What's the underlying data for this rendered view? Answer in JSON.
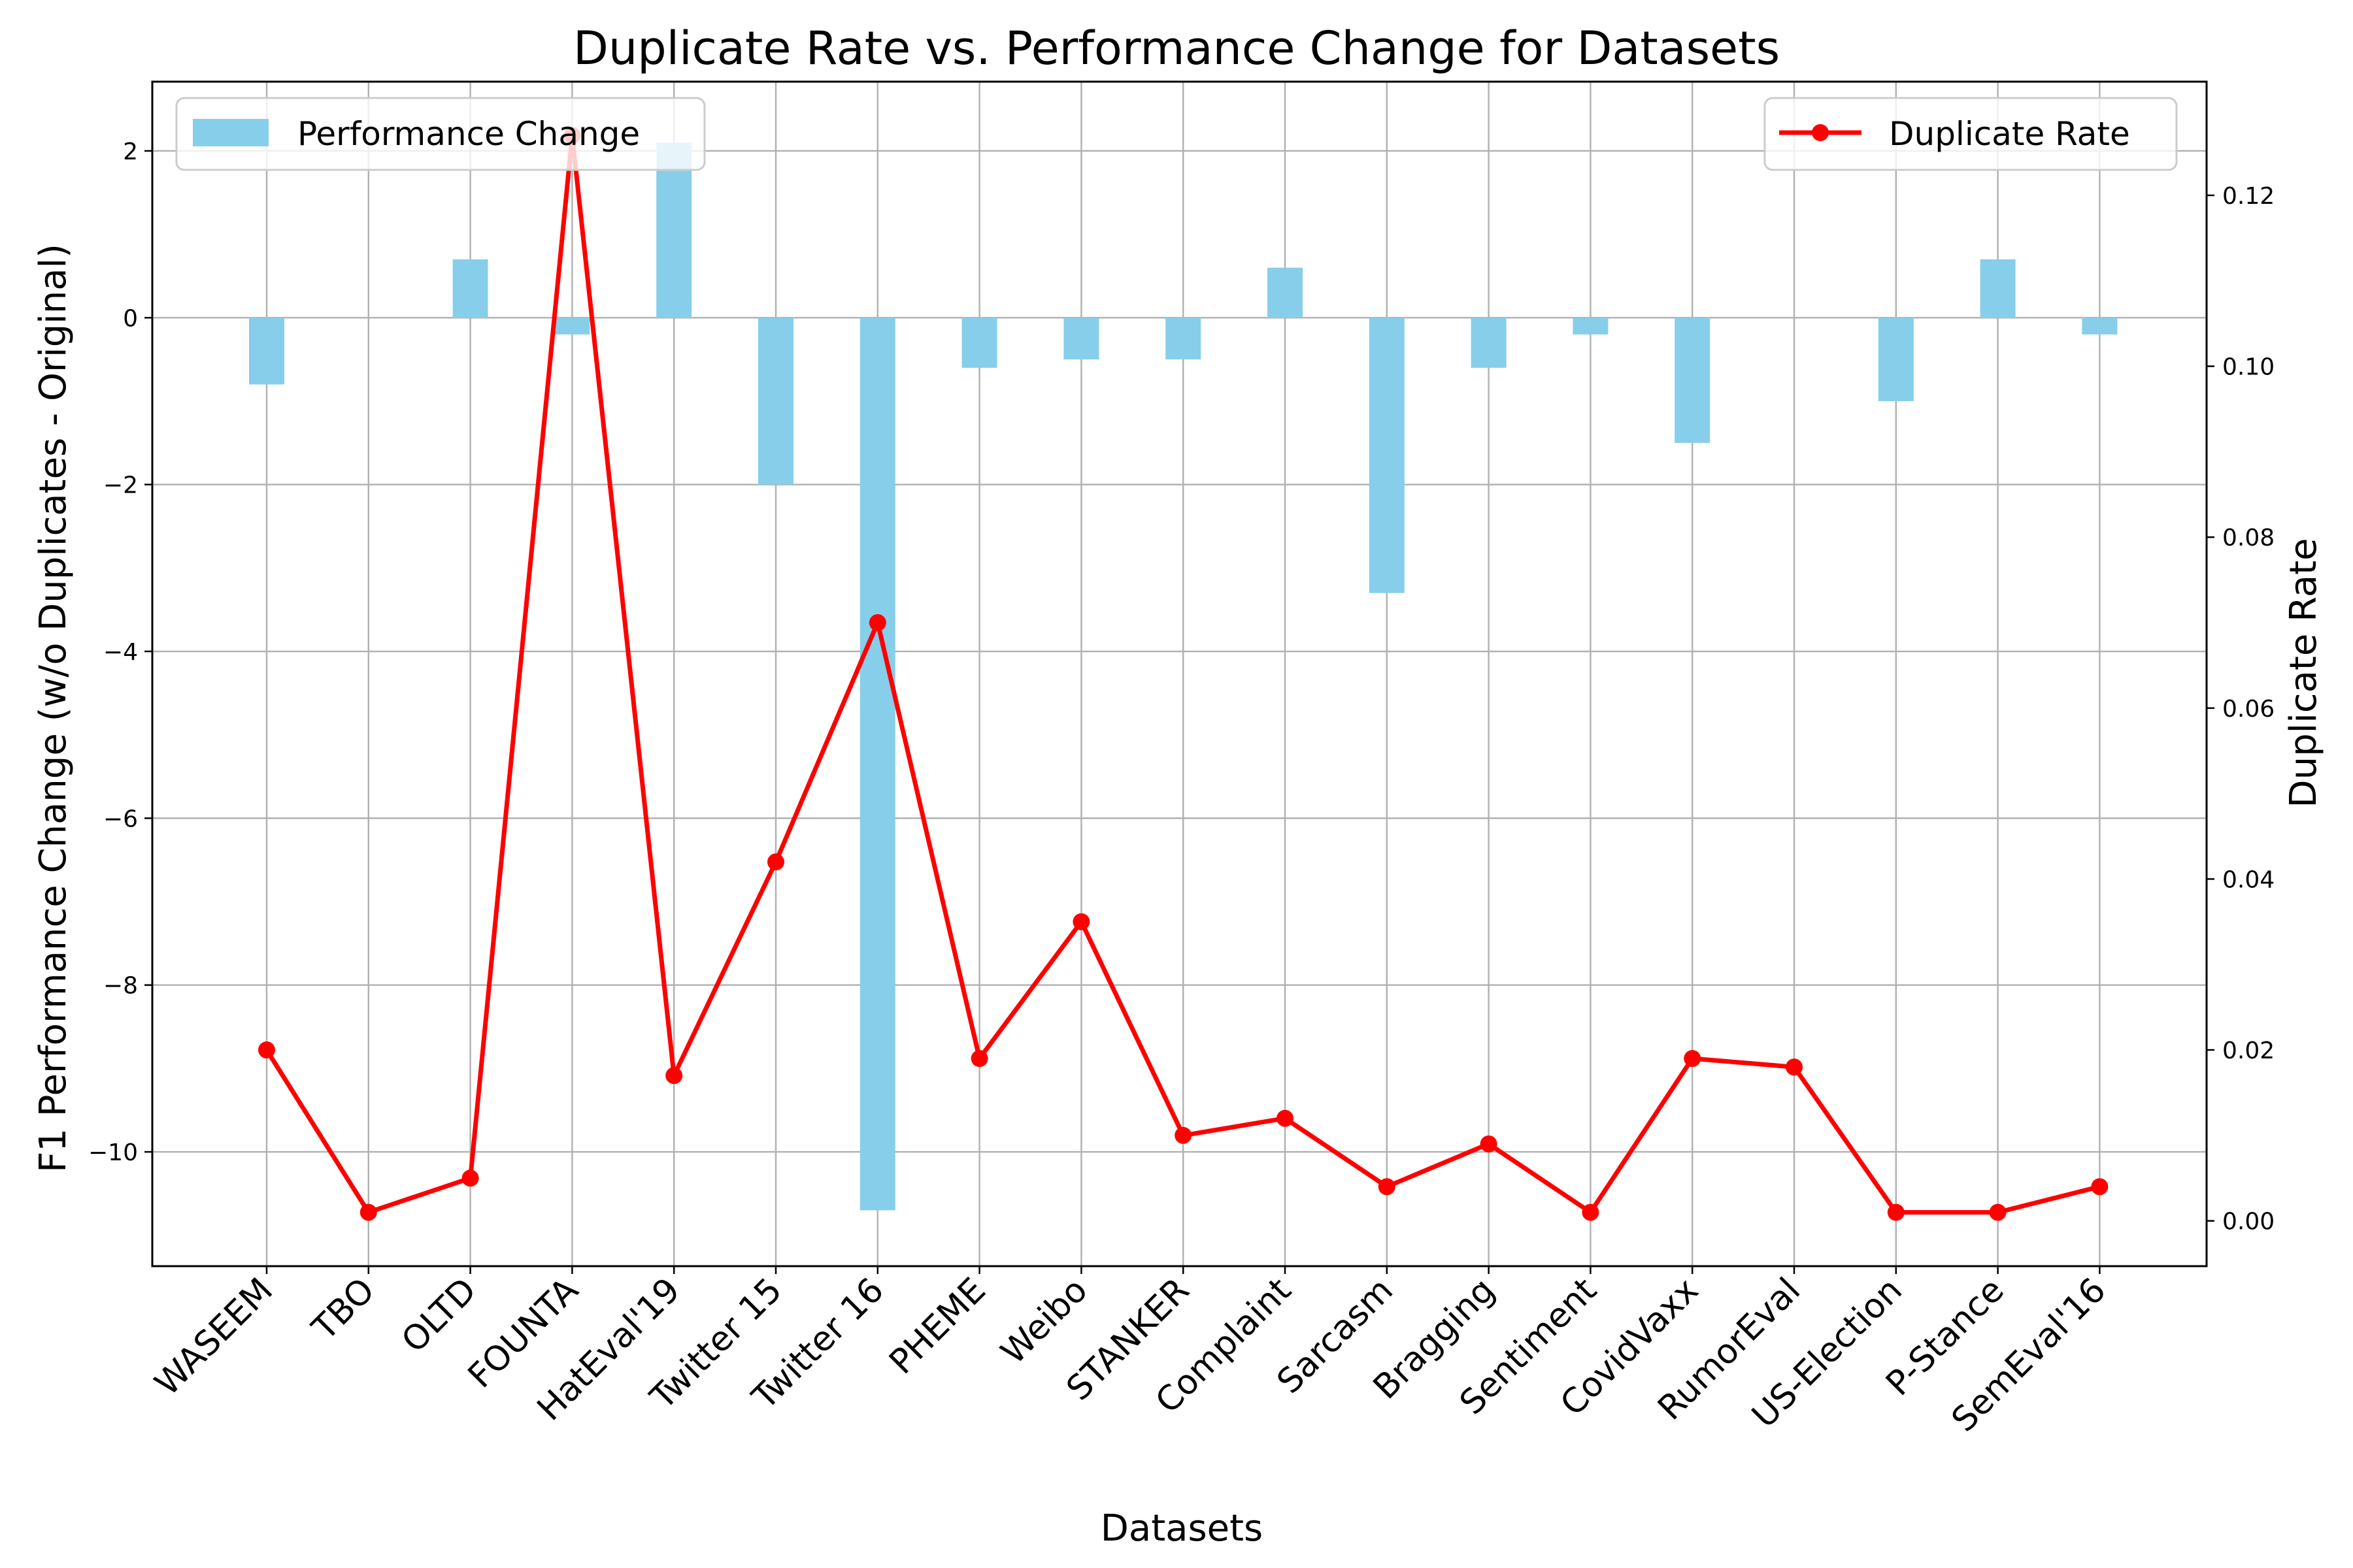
{
  "chart_data": {
    "type": "bar+line",
    "title": "Duplicate Rate vs. Performance Change for Datasets",
    "xlabel": "Datasets",
    "ylabel_left": "F1 Performance Change (w/o Duplicates - Original)",
    "ylabel_right": "Duplicate Rate",
    "categories": [
      "WASEEM",
      "TBO",
      "OLTD",
      "FOUNTA",
      "HatEval'19",
      "Twitter 15",
      "Twitter 16",
      "PHEME",
      "Weibo",
      "STANKER",
      "Complaint",
      "Sarcasm",
      "Bragging",
      "Sentiment",
      "CovidVaxx",
      "RumorEval",
      "US-Election",
      "P-Stance",
      "SemEval'16"
    ],
    "series": [
      {
        "name": "Performance Change",
        "type": "bar",
        "axis": "left",
        "color": "#87ceeb",
        "values": [
          -0.8,
          0.0,
          0.7,
          -0.2,
          2.1,
          -2.0,
          -10.7,
          -0.6,
          -0.5,
          -0.5,
          0.6,
          -3.3,
          -0.6,
          -0.2,
          -1.5,
          0.0,
          -1.0,
          0.7,
          -0.2
        ]
      },
      {
        "name": "Duplicate Rate",
        "type": "line",
        "axis": "right",
        "color": "#ff0000",
        "values": [
          0.02,
          0.001,
          0.005,
          0.127,
          0.017,
          0.042,
          0.07,
          0.019,
          0.035,
          0.01,
          0.012,
          0.004,
          0.009,
          0.001,
          0.019,
          0.018,
          0.001,
          0.001,
          0.004
        ]
      }
    ],
    "ylim_left": [
      -11.37,
      2.83
    ],
    "ylim_right": [
      -0.0053,
      0.1333
    ],
    "yticks_left": [
      2,
      0,
      -2,
      -4,
      -6,
      -8,
      -10
    ],
    "yticks_left_labels": [
      "2",
      "0",
      "−2",
      "−4",
      "−6",
      "−8",
      "−10"
    ],
    "yticks_right": [
      0.12,
      0.1,
      0.08,
      0.06,
      0.04,
      0.02,
      0.0
    ],
    "yticks_right_labels": [
      "0.12",
      "0.10",
      "0.08",
      "0.06",
      "0.04",
      "0.02",
      "0.00"
    ],
    "grid": true,
    "legend_left": {
      "label": "Performance Change",
      "placement": "top-left"
    },
    "legend_right": {
      "label": "Duplicate Rate",
      "placement": "top-right"
    }
  }
}
